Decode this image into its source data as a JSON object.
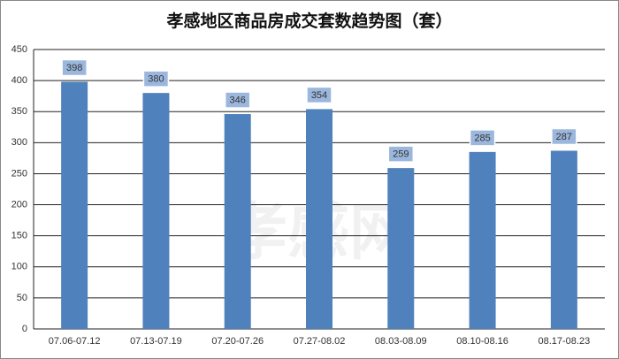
{
  "chart_data": {
    "type": "bar",
    "title": "孝感地区商品房成交套数趋势图（套）",
    "categories": [
      "07.06-07.12",
      "07.13-07.19",
      "07.20-07.26",
      "07.27-08.02",
      "08.03-08.09",
      "08.10-08.16",
      "08.17-08.23"
    ],
    "values": [
      398,
      380,
      346,
      354,
      259,
      285,
      287
    ],
    "color": "#4f81bd",
    "ylim": [
      0,
      450
    ],
    "yticks": [
      0,
      50,
      100,
      150,
      200,
      250,
      300,
      350,
      400,
      450
    ],
    "grid": true,
    "watermark": "孝感网"
  }
}
